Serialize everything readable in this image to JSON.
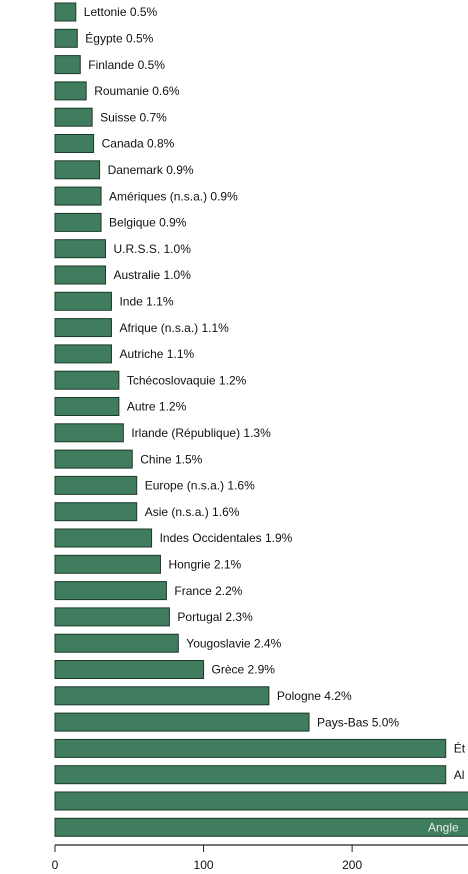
{
  "chart_data": {
    "type": "bar",
    "orientation": "horizontal",
    "color": "#3f7d5e",
    "categories": [
      "Lettonie  0.5%",
      "Égypte  0.5%",
      "Finlande  0.5%",
      "Roumanie  0.6%",
      "Suisse  0.7%",
      "Canada  0.8%",
      "Danemark  0.9%",
      "Amériques (n.s.a.)  0.9%",
      "Belgique  0.9%",
      "U.R.S.S.  1.0%",
      "Australie  1.0%",
      "Inde  1.1%",
      "Afrique (n.s.a.)  1.1%",
      "Autriche  1.1%",
      "Tchécoslovaquie  1.2%",
      "Autre  1.2%",
      "Irlande (République)  1.3%",
      "Chine  1.5%",
      "Europe (n.s.a.)  1.6%",
      "Asie (n.s.a.)  1.6%",
      "Indes Occidentales  1.9%",
      "Hongrie  2.1%",
      "France  2.2%",
      "Portugal  2.3%",
      "Yougoslavie  2.4%",
      "Grèce  2.9%",
      "Pologne  4.2%",
      "Pays-Bas  5.0%",
      "Ét",
      "Al",
      null,
      "Angle"
    ],
    "values": [
      14,
      15,
      17,
      21,
      25,
      26,
      30,
      31,
      31,
      34,
      34,
      38,
      38,
      38,
      43,
      43,
      46,
      52,
      55,
      55,
      65,
      71,
      75,
      77,
      83,
      100,
      144,
      171,
      263,
      263,
      300,
      320
    ],
    "xlim": [
      0,
      278
    ],
    "xticks": [
      0,
      100,
      200
    ]
  }
}
